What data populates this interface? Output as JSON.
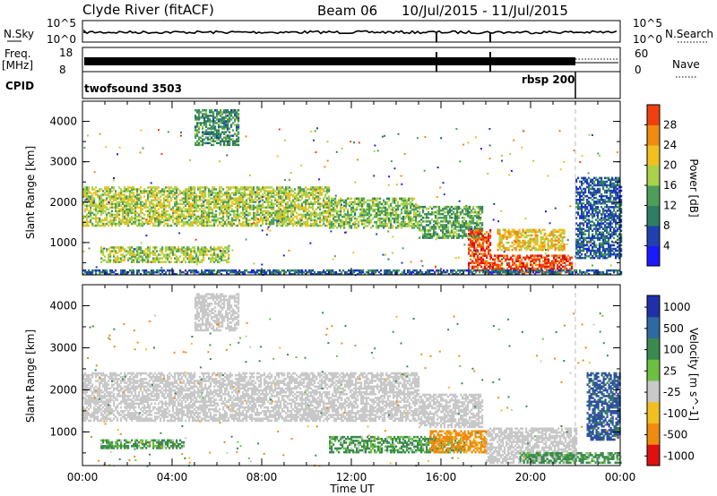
{
  "header": {
    "station": "Clyde River (fitACF)",
    "beam": "Beam 06",
    "date_range": "10/Jul/2015 - 11/Jul/2015"
  },
  "strips": {
    "nsky": {
      "label": "N.Sky",
      "tick_top": "10^5",
      "tick_bot": "10^0",
      "right_label": "N.Search",
      "right_top": "10^5",
      "right_bot": "10^0"
    },
    "freq": {
      "label_line1": "Freq.",
      "label_line2": "[MHz]",
      "tick_top": "18",
      "tick_bot": "8",
      "right_label": "Nave",
      "right_top": "60",
      "right_bot": "0"
    },
    "cpid": {
      "label": "CPID",
      "program1": "twofsound 3503",
      "program2": "rbsp 200"
    }
  },
  "chart_data": [
    {
      "type": "heatmap",
      "title": "",
      "ylabel": "Slant Range [km]",
      "ylim": [
        200,
        4500
      ],
      "yticks": [
        1000,
        2000,
        3000,
        4000
      ],
      "xlim": [
        "00:00",
        "24:00"
      ],
      "colorbar": {
        "label": "Power [dB]",
        "ticks": [
          4,
          8,
          12,
          16,
          20,
          24,
          28
        ],
        "range": [
          0,
          32
        ]
      },
      "bands": [
        {
          "t0": 0.0,
          "t1": 11.0,
          "r0": 1400,
          "r1": 2350,
          "value": 18
        },
        {
          "t0": 11.0,
          "t1": 15.0,
          "r0": 1350,
          "r1": 2100,
          "value": 16
        },
        {
          "t0": 15.0,
          "t1": 17.8,
          "r0": 1100,
          "r1": 1900,
          "value": 14
        },
        {
          "t0": 0.8,
          "t1": 6.5,
          "r0": 500,
          "r1": 900,
          "value": 18
        },
        {
          "t0": 17.2,
          "t1": 18.2,
          "r0": 250,
          "r1": 1300,
          "value": 30
        },
        {
          "t0": 18.2,
          "t1": 21.8,
          "r0": 250,
          "r1": 700,
          "value": 30
        },
        {
          "t0": 18.5,
          "t1": 21.5,
          "r0": 800,
          "r1": 1300,
          "value": 22
        },
        {
          "t0": 22.0,
          "t1": 24.0,
          "r0": 600,
          "r1": 2600,
          "value": 8
        },
        {
          "t0": 5.0,
          "t1": 7.0,
          "r0": 3400,
          "r1": 4300,
          "value": 12
        },
        {
          "t0": 0.0,
          "t1": 24.0,
          "r0": 200,
          "r1": 320,
          "value": 8
        }
      ]
    },
    {
      "type": "heatmap",
      "title": "",
      "ylabel": "Slant Range [km]",
      "xlabel": "Time UT",
      "ylim": [
        200,
        4500
      ],
      "yticks": [
        1000,
        2000,
        3000,
        4000
      ],
      "xticks": [
        "00:00",
        "04:00",
        "08:00",
        "12:00",
        "16:00",
        "20:00",
        "00:00"
      ],
      "colorbar": {
        "label": "Velocity [m s^-1]",
        "ticks": [
          1000,
          500,
          100,
          25,
          -25,
          -100,
          -500,
          -1000
        ]
      },
      "bands": [
        {
          "t0": 0.0,
          "t1": 15.0,
          "r0": 1250,
          "r1": 2400,
          "value": 0
        },
        {
          "t0": 15.0,
          "t1": 17.8,
          "r0": 1100,
          "r1": 1900,
          "value": 0
        },
        {
          "t0": 0.8,
          "t1": 4.5,
          "r0": 600,
          "r1": 800,
          "value": 150
        },
        {
          "t0": 11.0,
          "t1": 17.0,
          "r0": 500,
          "r1": 900,
          "value": 150
        },
        {
          "t0": 15.5,
          "t1": 18.0,
          "r0": 500,
          "r1": 1000,
          "value": -200
        },
        {
          "t0": 18.0,
          "t1": 22.0,
          "r0": 250,
          "r1": 1100,
          "value": 0
        },
        {
          "t0": 19.5,
          "t1": 24.0,
          "r0": 250,
          "r1": 500,
          "value": 150
        },
        {
          "t0": 22.5,
          "t1": 24.0,
          "r0": 800,
          "r1": 2400,
          "value": 600
        },
        {
          "t0": 5.0,
          "t1": 7.0,
          "r0": 3400,
          "r1": 4300,
          "value": 0
        }
      ]
    }
  ]
}
